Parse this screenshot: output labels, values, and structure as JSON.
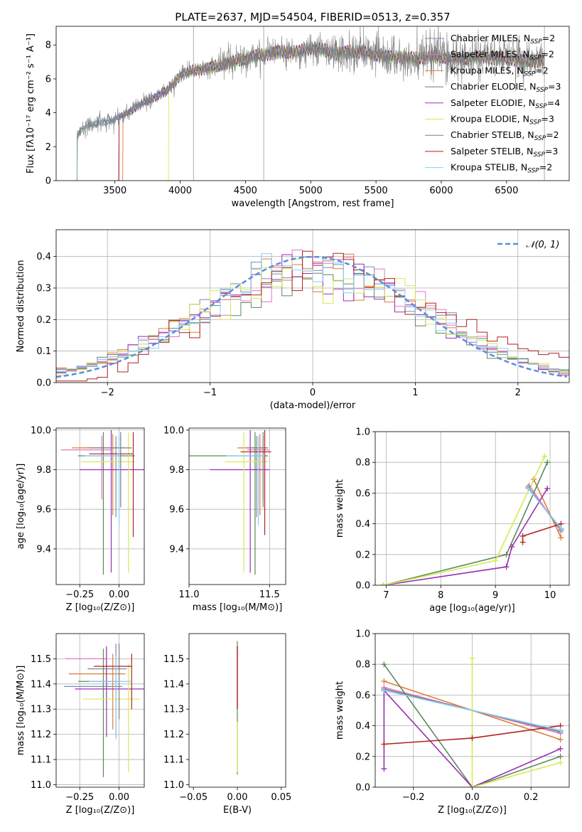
{
  "title": "PLATE=2637, MJD=54504, FIBERID=0513, z=0.357",
  "colors": [
    "#6c8ebf",
    "#e377c2",
    "#e07b39",
    "#5a8a5a",
    "#9b30b0",
    "#d4ea52",
    "#7f7f7f",
    "#b22222",
    "#87cefa"
  ],
  "chart_data": [
    {
      "id": "spectrum",
      "type": "line",
      "xlabel": "wavelength [Angstrom, rest frame]",
      "ylabel": "Flux [fλ10⁻¹⁷ erg cm⁻² s⁻¹ A⁻¹]",
      "xlim": [
        3050,
        6980
      ],
      "ylim": [
        0,
        9.1
      ],
      "xticks": [
        3500,
        4000,
        4500,
        5000,
        5500,
        6000,
        6500
      ],
      "yticks": [
        0,
        2,
        4,
        6,
        8
      ],
      "legend_position": "top-right",
      "series": [
        {
          "name": "Chabrier MILES, N_SSP=2"
        },
        {
          "name": "Salpeter MILES, N_SSP=2"
        },
        {
          "name": "Kroupa MILES, N_SSP=2"
        },
        {
          "name": "Chabrier ELODIE, N_SSP=3"
        },
        {
          "name": "Salpeter ELODIE, N_SSP=4"
        },
        {
          "name": "Kroupa ELODIE, N_SSP=3"
        },
        {
          "name": "Chabrier STELIB, N_SSP=2"
        },
        {
          "name": "Salpeter STELIB, N_SSP=3"
        },
        {
          "name": "Kroupa STELIB, N_SSP=2"
        }
      ],
      "continuum": {
        "x": [
          3210,
          3260,
          3300,
          3400,
          3500,
          3600,
          3700,
          3800,
          3900,
          4000,
          4100,
          4200,
          4300,
          4400,
          4500,
          4600,
          4700,
          4800,
          4900,
          5000,
          5100,
          5200,
          5300,
          5400,
          5500,
          5600,
          5700,
          5800,
          5900,
          6000,
          6100,
          6200,
          6300,
          6400,
          6500,
          6600,
          6780
        ],
        "y": [
          2.7,
          3.1,
          3.3,
          3.4,
          3.6,
          4.0,
          4.5,
          4.9,
          5.3,
          6.2,
          6.5,
          6.6,
          6.8,
          7.0,
          7.2,
          7.4,
          7.5,
          7.6,
          7.6,
          7.8,
          7.7,
          7.5,
          7.6,
          7.6,
          7.4,
          7.3,
          7.3,
          7.2,
          7.3,
          7.3,
          7.2,
          7.2,
          7.3,
          7.2,
          7.2,
          7.1,
          7.0
        ]
      },
      "observed_start": 3210,
      "model_cutoffs": [
        3210,
        3530,
        3560,
        3210,
        3530,
        3910,
        3210,
        3530,
        3210
      ]
    },
    {
      "id": "residuals",
      "type": "histogram",
      "xlabel": "(data-model)/error",
      "ylabel": "Normed distribution",
      "xlim": [
        -2.5,
        2.5
      ],
      "ylim": [
        0,
        0.485
      ],
      "xticks": [
        -2,
        -1,
        0,
        1,
        2
      ],
      "yticks": [
        0.0,
        0.1,
        0.2,
        0.3,
        0.4
      ],
      "grid": true,
      "legend_position": "top-right",
      "reference_curve": {
        "name": "𝒩(0, 1)",
        "mean": 0,
        "sigma": 1,
        "style": "dashed"
      },
      "bin_width": 0.1
    },
    {
      "id": "age-vs-Z",
      "type": "errorbar",
      "xlabel": "Z [log₁₀(Z/Z⊙)]",
      "ylabel": "age  [log₁₀(age/yr)]",
      "xlim": [
        -0.4,
        0.16
      ],
      "ylim": [
        9.22,
        10.01
      ],
      "xticks": [
        -0.25,
        0.0
      ],
      "xticklabels": [
        "−0.25",
        "0.00"
      ],
      "yticks": [
        9.4,
        9.6,
        9.8,
        10.0
      ],
      "grid": true,
      "points": [
        {
          "x": -0.02,
          "y": 9.91,
          "xerr": [
            0.22,
            0.02
          ],
          "yerr": [
            0.35,
            0.06
          ]
        },
        {
          "x": -0.11,
          "y": 9.9,
          "xerr": [
            0.26,
            0.06
          ],
          "yerr": [
            0.25,
            0.07
          ]
        },
        {
          "x": -0.04,
          "y": 9.91,
          "xerr": [
            0.26,
            0.08
          ],
          "yerr": [
            0.34,
            0.07
          ]
        },
        {
          "x": -0.1,
          "y": 9.87,
          "xerr": [
            0.16,
            0.2
          ],
          "yerr": [
            0.6,
            0.12
          ]
        },
        {
          "x": -0.05,
          "y": 9.8,
          "xerr": [
            0.2,
            0.22
          ],
          "yerr": [
            0.52,
            0.2
          ]
        },
        {
          "x": 0.06,
          "y": 9.84,
          "xerr": [
            0.3,
            0.04
          ],
          "yerr": [
            0.56,
            0.15
          ]
        },
        {
          "x": 0.01,
          "y": 9.91,
          "xerr": [
            0.2,
            0.07
          ],
          "yerr": [
            0.3,
            0.08
          ]
        },
        {
          "x": 0.09,
          "y": 9.88,
          "xerr": [
            0.28,
            0.0
          ],
          "yerr": [
            0.42,
            0.11
          ]
        },
        {
          "x": 0.0,
          "y": 9.87,
          "xerr": [
            0.22,
            0.0
          ],
          "yerr": [
            0.35,
            0.1
          ]
        }
      ]
    },
    {
      "id": "age-vs-mass",
      "type": "errorbar",
      "xlabel": "mass [log₁₀(M/M⊙)]",
      "ylabel": "",
      "xlim": [
        11.0,
        11.6
      ],
      "ylim": [
        9.22,
        10.01
      ],
      "xticks": [
        11.0,
        11.5
      ],
      "xticklabels": [
        "11.0",
        "11.5"
      ],
      "yticks": [
        9.4,
        9.6,
        9.8,
        10.0
      ],
      "grid": true,
      "points": [
        {
          "x": 11.42,
          "y": 9.91,
          "xerr": [
            0.1,
            0.04
          ],
          "yerr": [
            0.35,
            0.06
          ]
        },
        {
          "x": 11.46,
          "y": 9.9,
          "xerr": [
            0.1,
            0.04
          ],
          "yerr": [
            0.25,
            0.07
          ]
        },
        {
          "x": 11.44,
          "y": 9.91,
          "xerr": [
            0.14,
            0.05
          ],
          "yerr": [
            0.34,
            0.07
          ]
        },
        {
          "x": 11.41,
          "y": 9.87,
          "xerr": [
            0.41,
            0.08
          ],
          "yerr": [
            0.6,
            0.12
          ]
        },
        {
          "x": 11.38,
          "y": 9.8,
          "xerr": [
            0.25,
            0.12
          ],
          "yerr": [
            0.52,
            0.2
          ]
        },
        {
          "x": 11.34,
          "y": 9.84,
          "xerr": [
            0.12,
            0.15
          ],
          "yerr": [
            0.56,
            0.15
          ]
        },
        {
          "x": 11.46,
          "y": 9.91,
          "xerr": [
            0.1,
            0.03
          ],
          "yerr": [
            0.3,
            0.08
          ]
        },
        {
          "x": 11.47,
          "y": 9.89,
          "xerr": [
            0.15,
            0.04
          ],
          "yerr": [
            0.42,
            0.11
          ]
        },
        {
          "x": 11.43,
          "y": 9.87,
          "xerr": [
            0.2,
            0.04
          ],
          "yerr": [
            0.35,
            0.1
          ]
        }
      ]
    },
    {
      "id": "mass-weight-vs-age",
      "type": "line",
      "xlabel": "age  [log₁₀(age/yr)]",
      "ylabel": "mass weight",
      "xlim": [
        6.8,
        10.35
      ],
      "ylim": [
        0.0,
        1.0
      ],
      "xticks": [
        7,
        8,
        9,
        10
      ],
      "yticks": [
        0.0,
        0.2,
        0.4,
        0.6,
        0.8,
        1.0
      ],
      "grid": true,
      "series": [
        {
          "x": [
            9.6,
            10.2
          ],
          "y": [
            0.63,
            0.37
          ]
        },
        {
          "x": [
            9.62,
            10.2
          ],
          "y": [
            0.65,
            0.35
          ]
        },
        {
          "x": [
            9.7,
            10.2
          ],
          "y": [
            0.69,
            0.31
          ]
        },
        {
          "x": [
            6.95,
            9.2,
            9.95
          ],
          "y": [
            0.0,
            0.2,
            0.8
          ]
        },
        {
          "x": [
            6.95,
            9.2,
            9.3,
            9.95
          ],
          "y": [
            0.0,
            0.12,
            0.25,
            0.63
          ]
        },
        {
          "x": [
            6.95,
            9.0,
            9.9
          ],
          "y": [
            0.0,
            0.16,
            0.84
          ]
        },
        {
          "x": [
            9.6,
            10.2
          ],
          "y": [
            0.64,
            0.36
          ]
        },
        {
          "x": [
            9.5,
            9.5,
            10.2
          ],
          "y": [
            0.28,
            0.32,
            0.4
          ]
        },
        {
          "x": [
            9.6,
            10.2
          ],
          "y": [
            0.63,
            0.37
          ]
        }
      ]
    },
    {
      "id": "mass-vs-Z",
      "type": "errorbar",
      "xlabel": "Z [log₁₀(Z/Z⊙)]",
      "ylabel": "mass [log₁₀(M/M⊙)]",
      "xlim": [
        -0.4,
        0.16
      ],
      "ylim": [
        10.99,
        11.6
      ],
      "xticks": [
        -0.25,
        0.0
      ],
      "xticklabels": [
        "−0.25",
        "0.00"
      ],
      "yticks": [
        11.0,
        11.1,
        11.2,
        11.3,
        11.4,
        11.5
      ],
      "grid": true,
      "points": [
        {
          "x": -0.02,
          "y": 11.39,
          "xerr": [
            0.33,
            0.04
          ],
          "yerr": [
            0.2,
            0.17
          ]
        },
        {
          "x": -0.08,
          "y": 11.5,
          "xerr": [
            0.26,
            0.0
          ],
          "yerr": [
            0.1,
            0.04
          ]
        },
        {
          "x": -0.04,
          "y": 11.44,
          "xerr": [
            0.28,
            0.08
          ],
          "yerr": [
            0.22,
            0.08
          ]
        },
        {
          "x": -0.1,
          "y": 11.41,
          "xerr": [
            0.16,
            0.11
          ],
          "yerr": [
            0.38,
            0.13
          ]
        },
        {
          "x": -0.08,
          "y": 11.38,
          "xerr": [
            0.2,
            0.25
          ],
          "yerr": [
            0.19,
            0.17
          ]
        },
        {
          "x": 0.06,
          "y": 11.34,
          "xerr": [
            0.29,
            0.07
          ],
          "yerr": [
            0.29,
            0.14
          ]
        },
        {
          "x": 0.0,
          "y": 11.46,
          "xerr": [
            0.2,
            0.05
          ],
          "yerr": [
            0.2,
            0.1
          ]
        },
        {
          "x": 0.08,
          "y": 11.47,
          "xerr": [
            0.24,
            0.0
          ],
          "yerr": [
            0.17,
            0.05
          ]
        },
        {
          "x": -0.02,
          "y": 11.41,
          "xerr": [
            0.17,
            0.1
          ],
          "yerr": [
            0.23,
            0.1
          ]
        }
      ]
    },
    {
      "id": "mass-vs-EBV",
      "type": "errorbar",
      "xlabel": "E(B-V)",
      "ylabel": "",
      "xlim": [
        -0.055,
        0.055
      ],
      "ylim": [
        10.99,
        11.6
      ],
      "xticks": [
        -0.05,
        0.0,
        0.05
      ],
      "xticklabels": [
        "−0.05",
        "0.00",
        "0.05"
      ],
      "yticks": [
        11.0,
        11.1,
        11.2,
        11.3,
        11.4,
        11.5
      ],
      "grid": false,
      "points": [
        {
          "x": 0.0,
          "y": 11.31,
          "xerr": [
            0,
            0
          ],
          "yerr": [
            0.27,
            0.26
          ]
        }
      ]
    },
    {
      "id": "mass-weight-vs-Z",
      "type": "line",
      "xlabel": "Z [log₁₀(Z/Z⊙)]",
      "ylabel": "mass weight",
      "xlim": [
        -0.33,
        0.33
      ],
      "ylim": [
        0.0,
        1.0
      ],
      "xticks": [
        -0.2,
        0.0,
        0.2
      ],
      "xticklabels": [
        "−0.2",
        "0.0",
        "0.2"
      ],
      "yticks": [
        0.0,
        0.2,
        0.4,
        0.6,
        0.8,
        1.0
      ],
      "grid": true,
      "series": [
        {
          "x": [
            -0.3,
            0.3
          ],
          "y": [
            0.63,
            0.37
          ]
        },
        {
          "x": [
            -0.3,
            0.3
          ],
          "y": [
            0.65,
            0.35
          ]
        },
        {
          "x": [
            -0.3,
            0.3
          ],
          "y": [
            0.69,
            0.31
          ]
        },
        {
          "x": [
            -0.3,
            0.0,
            0.3
          ],
          "y": [
            0.8,
            0.0,
            0.2
          ]
        },
        {
          "x": [
            -0.3,
            -0.3,
            0.0,
            0.3
          ],
          "y": [
            0.12,
            0.63,
            0.0,
            0.25
          ]
        },
        {
          "x": [
            0.0,
            0.0,
            0.3
          ],
          "y": [
            0.84,
            0.0,
            0.16
          ]
        },
        {
          "x": [
            -0.3,
            0.3
          ],
          "y": [
            0.64,
            0.36
          ]
        },
        {
          "x": [
            -0.3,
            0.0,
            0.3
          ],
          "y": [
            0.28,
            0.32,
            0.4
          ]
        },
        {
          "x": [
            -0.3,
            0.3
          ],
          "y": [
            0.63,
            0.37
          ]
        }
      ]
    }
  ]
}
